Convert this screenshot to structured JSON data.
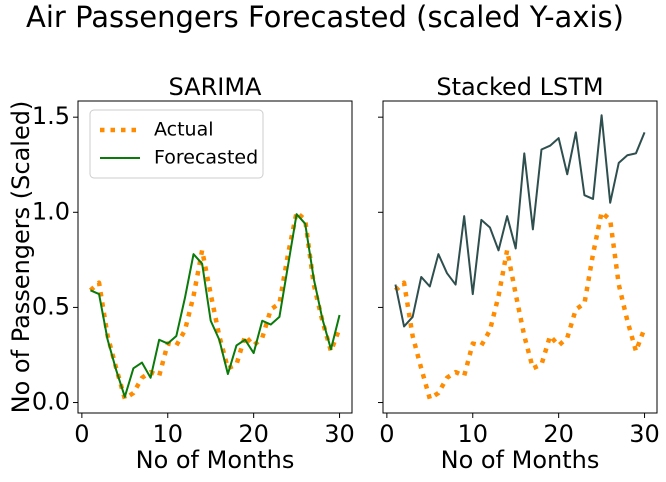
{
  "title": "Air Passengers Forecasted (scaled Y-axis)",
  "chart_data": [
    {
      "type": "line",
      "title": "SARIMA",
      "xlabel": "No of Months",
      "ylabel": "No of Passengers (Scaled)",
      "x": [
        1,
        2,
        3,
        4,
        5,
        6,
        7,
        8,
        9,
        10,
        11,
        12,
        13,
        14,
        15,
        16,
        17,
        18,
        19,
        20,
        21,
        22,
        23,
        24,
        25,
        26,
        27,
        28,
        29,
        30
      ],
      "xlim": [
        -0.45,
        31.45
      ],
      "xticks": [
        0,
        10,
        20,
        30
      ],
      "ylim": [
        -0.055,
        1.585
      ],
      "yticks": [
        {
          "value": 0,
          "label": "0.0"
        },
        0.5,
        {
          "value": 1,
          "label": "1.0"
        },
        1.5
      ],
      "legend": "upper left",
      "series": [
        {
          "name": "Actual",
          "color": "#ff8c00",
          "style": "dotted",
          "values": [
            0.59,
            0.63,
            0.35,
            0.18,
            0.02,
            0.05,
            0.13,
            0.16,
            0.14,
            0.31,
            0.3,
            0.38,
            0.56,
            0.8,
            0.57,
            0.35,
            0.18,
            0.2,
            0.35,
            0.3,
            0.34,
            0.49,
            0.52,
            0.78,
            1.0,
            0.96,
            0.62,
            0.43,
            0.27,
            0.39
          ]
        },
        {
          "name": "Forecasted",
          "color": "#0a7a0a",
          "style": "solid",
          "values": [
            0.59,
            0.57,
            0.33,
            0.17,
            0.03,
            0.18,
            0.21,
            0.13,
            0.33,
            0.31,
            0.35,
            0.55,
            0.78,
            0.73,
            0.43,
            0.33,
            0.15,
            0.3,
            0.33,
            0.26,
            0.43,
            0.41,
            0.45,
            0.72,
            0.99,
            0.94,
            0.65,
            0.44,
            0.28,
            0.46
          ]
        }
      ]
    },
    {
      "type": "line",
      "title": "Stacked LSTM",
      "xlabel": "No of Months",
      "x": [
        1,
        2,
        3,
        4,
        5,
        6,
        7,
        8,
        9,
        10,
        11,
        12,
        13,
        14,
        15,
        16,
        17,
        18,
        19,
        20,
        21,
        22,
        23,
        24,
        25,
        26,
        27,
        28,
        29,
        30
      ],
      "xlim": [
        -0.45,
        31.45
      ],
      "xticks": [
        0,
        10,
        20,
        30
      ],
      "ylim": [
        -0.055,
        1.585
      ],
      "yticks": [
        0,
        0.5,
        1,
        1.5
      ],
      "ytick_labels": false,
      "series": [
        {
          "color": "#ff8c00",
          "style": "dotted",
          "values": [
            0.59,
            0.63,
            0.35,
            0.18,
            0.02,
            0.05,
            0.13,
            0.16,
            0.14,
            0.31,
            0.3,
            0.38,
            0.56,
            0.8,
            0.57,
            0.35,
            0.18,
            0.2,
            0.35,
            0.3,
            0.34,
            0.49,
            0.52,
            0.78,
            1.0,
            0.96,
            0.62,
            0.43,
            0.27,
            0.39
          ]
        },
        {
          "color": "#2f4f4f",
          "style": "solid",
          "values": [
            0.62,
            0.4,
            0.45,
            0.66,
            0.61,
            0.78,
            0.68,
            0.62,
            0.98,
            0.57,
            0.96,
            0.92,
            0.8,
            0.98,
            0.81,
            1.31,
            0.91,
            1.33,
            1.35,
            1.39,
            1.2,
            1.42,
            1.09,
            1.07,
            1.51,
            1.05,
            1.26,
            1.3,
            1.31,
            1.42
          ]
        }
      ]
    }
  ]
}
